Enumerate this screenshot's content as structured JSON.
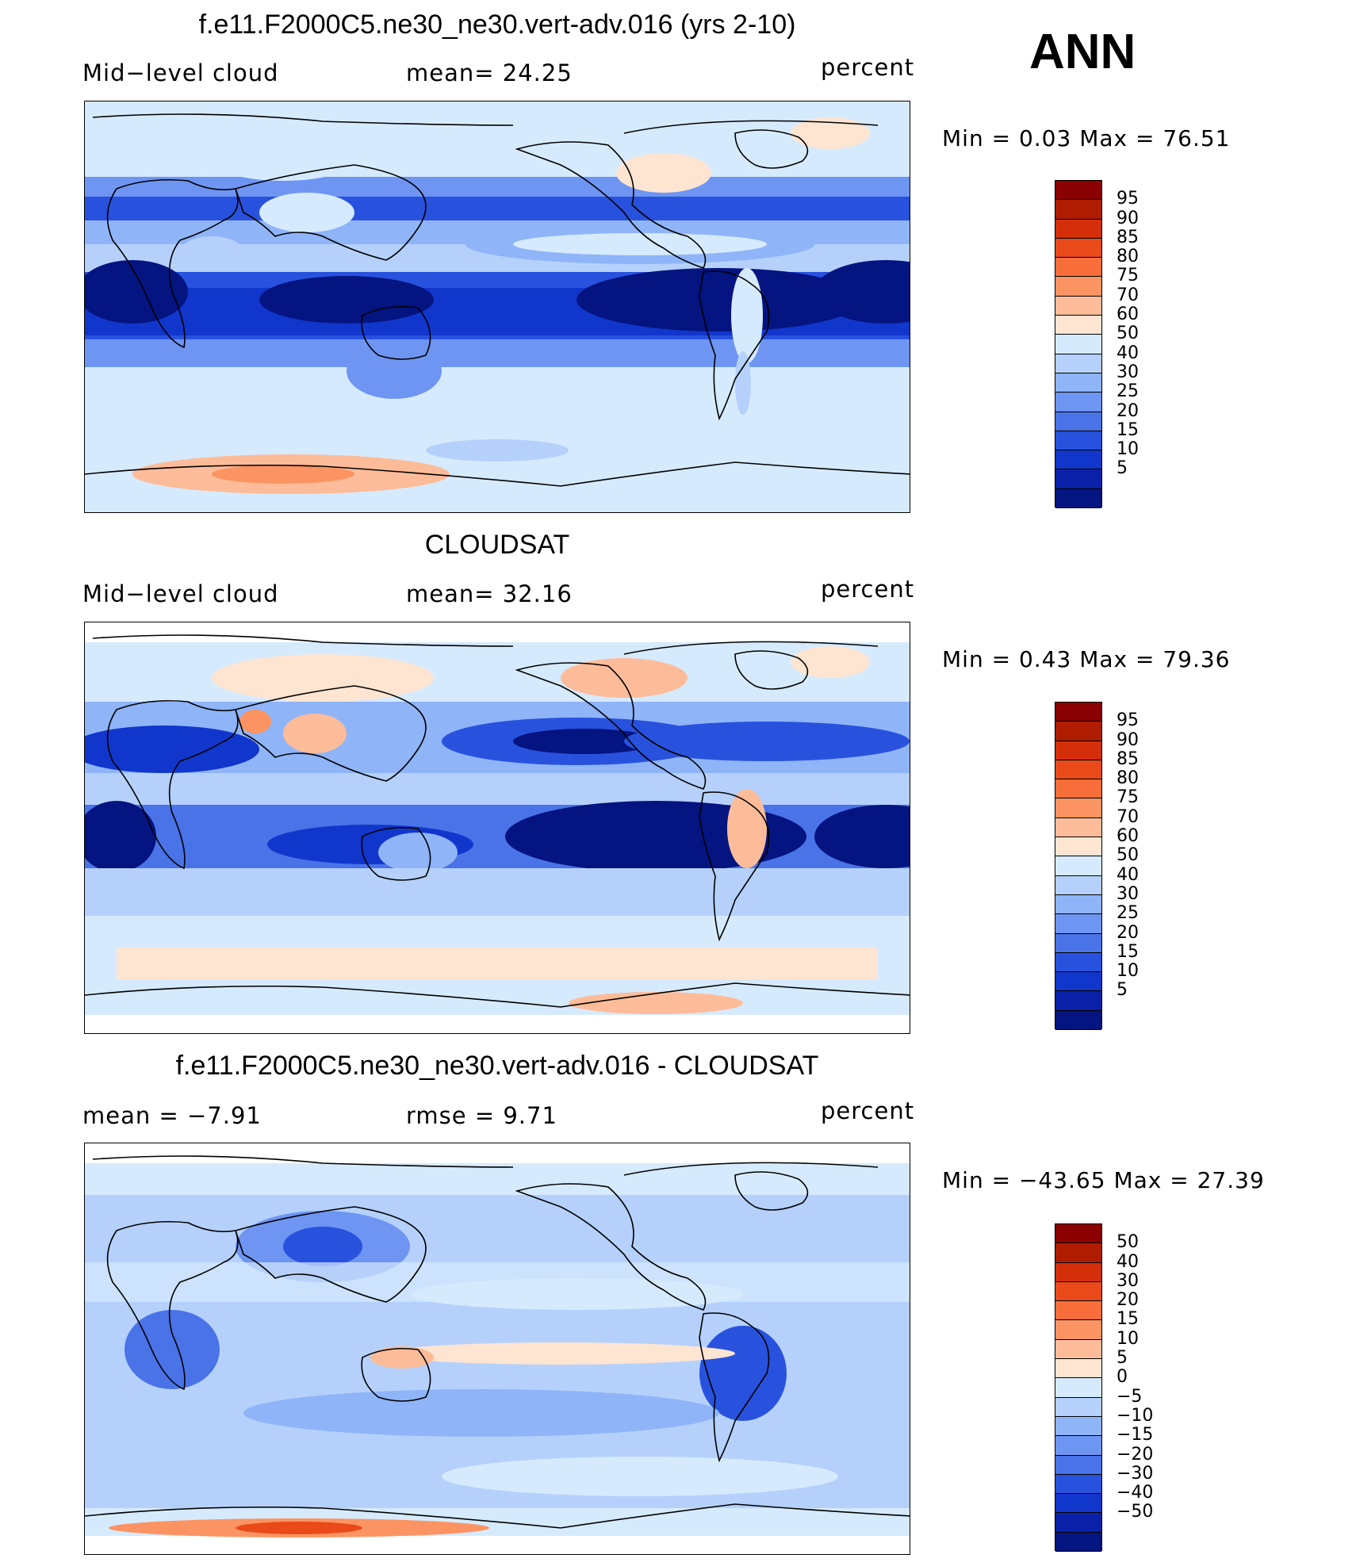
{
  "season": "ANN",
  "panels": [
    {
      "title": "f.e11.F2000C5.ne30_ne30.vert-adv.016 (yrs 2-10)",
      "left_label": "Mid−level cloud",
      "center_label": "mean=   24.25",
      "units": "percent",
      "minmax": "Min =    0.03 Max =   76.51",
      "levels": [
        "95",
        "90",
        "85",
        "80",
        "75",
        "70",
        "60",
        "50",
        "40",
        "30",
        "25",
        "20",
        "15",
        "10",
        "5"
      ],
      "colors": [
        "#8b0000",
        "#b01c00",
        "#d42e0a",
        "#ea4a1a",
        "#f86e3a",
        "#fb9462",
        "#fdbc99",
        "#fde5d2",
        "#d6eafd",
        "#b5d1fb",
        "#8fb4f8",
        "#6e95f2",
        "#4a73e8",
        "#2852de",
        "#1136cc",
        "#0a20a8",
        "#041480"
      ],
      "fields": [
        {
          "lat": [
            -75,
            50,
            20
          ],
          "lon": [
            -180,
            180,
            360
          ],
          "tint": 0
        },
        {
          "lat": [
            -40,
            40,
            30
          ],
          "lon": [
            -180,
            180,
            60
          ],
          "tint": 1
        }
      ]
    },
    {
      "title": "CLOUDSAT",
      "left_label": "Mid−level cloud",
      "center_label": "mean=   32.16",
      "units": "percent",
      "minmax": "Min =    0.43 Max =   79.36",
      "levels": [
        "95",
        "90",
        "85",
        "80",
        "75",
        "70",
        "60",
        "50",
        "40",
        "30",
        "25",
        "20",
        "15",
        "10",
        "5"
      ],
      "colors": [
        "#8b0000",
        "#b01c00",
        "#d42e0a",
        "#ea4a1a",
        "#f86e3a",
        "#fb9462",
        "#fdbc99",
        "#fde5d2",
        "#d6eafd",
        "#b5d1fb",
        "#8fb4f8",
        "#6e95f2",
        "#4a73e8",
        "#2852de",
        "#1136cc",
        "#0a20a8",
        "#041480"
      ]
    },
    {
      "title": "f.e11.F2000C5.ne30_ne30.vert-adv.016 - CLOUDSAT",
      "left_label": "mean  =   −7.91",
      "center_label": "rmse  =     9.71",
      "units": "percent",
      "minmax": "Min =  −43.65 Max =   27.39",
      "levels": [
        "50",
        "40",
        "30",
        "20",
        "15",
        "10",
        "5",
        "0",
        "−5",
        "−10",
        "−15",
        "−20",
        "−30",
        "−40",
        "−50"
      ],
      "colors": [
        "#8b0000",
        "#b01c00",
        "#d42e0a",
        "#ea4a1a",
        "#f86e3a",
        "#fb9462",
        "#fdbc99",
        "#fde5d2",
        "#d6eafd",
        "#b5d1fb",
        "#8fb4f8",
        "#6e95f2",
        "#4a73e8",
        "#2852de",
        "#1136cc",
        "#0a20a8",
        "#041480"
      ]
    }
  ]
}
